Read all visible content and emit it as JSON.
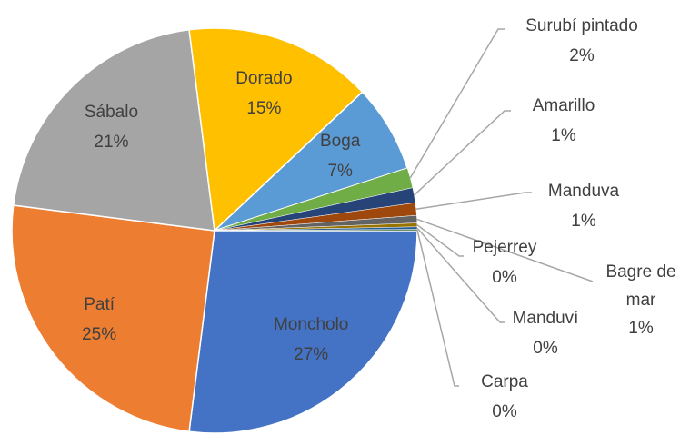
{
  "chart_data": {
    "type": "pie",
    "categories": [
      "Moncholo",
      "Patí",
      "Sábalo",
      "Dorado",
      "Boga",
      "Surubí pintado",
      "Amarillo",
      "Manduva",
      "Bagre de mar",
      "Pejerrey",
      "Manduví",
      "Carpa"
    ],
    "values": [
      27,
      25,
      21,
      15,
      7,
      1.6,
      1.2,
      1.0,
      0.6,
      0.3,
      0.2,
      0.1
    ],
    "value_labels": [
      "27%",
      "25%",
      "21%",
      "15%",
      "7%",
      "2%",
      "1%",
      "1%",
      "1%",
      "0%",
      "0%",
      "0%"
    ],
    "colors": [
      "#4472c4",
      "#ed7d31",
      "#a5a5a5",
      "#ffc000",
      "#5b9bd5",
      "#70ad47",
      "#264478",
      "#9e480e",
      "#636363",
      "#997300",
      "#255e91",
      "#43682b"
    ]
  }
}
